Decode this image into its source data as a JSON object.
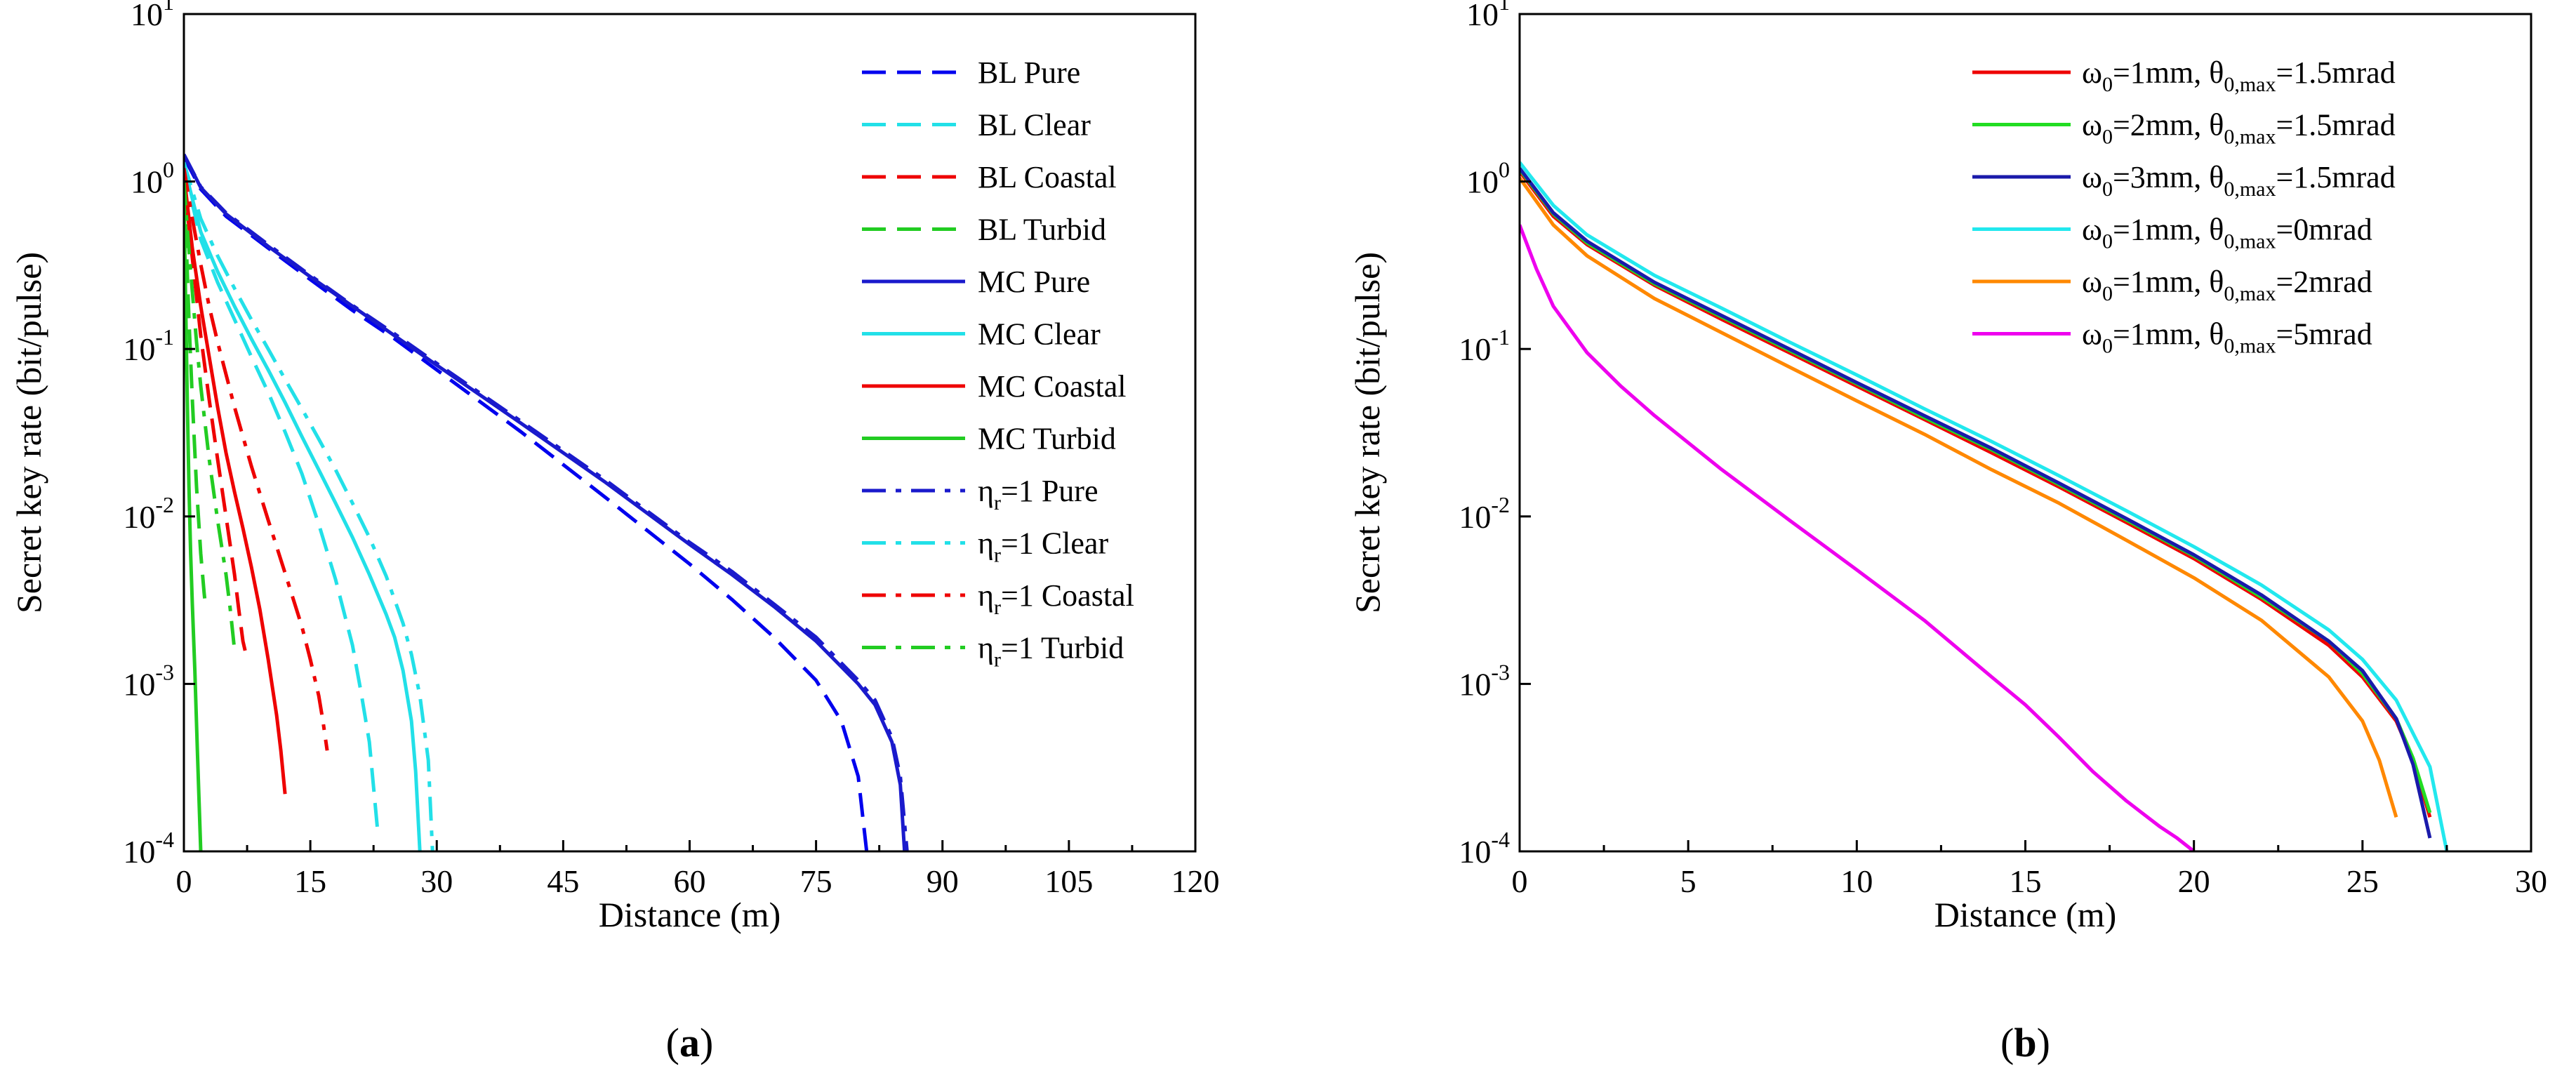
{
  "chart_data": [
    {
      "type": "line",
      "panel_label": "a",
      "xlabel": "Distance (m)",
      "ylabel": "Secret key rate (bit/pulse)",
      "xlim": [
        0,
        120
      ],
      "ylim": [
        0.0001,
        10
      ],
      "yscale": "log",
      "x_ticks": [
        "0",
        "15",
        "30",
        "45",
        "60",
        "75",
        "90",
        "105",
        "120"
      ],
      "y_ticks": [
        {
          "base": "10",
          "exp": "-4"
        },
        {
          "base": "10",
          "exp": "-3"
        },
        {
          "base": "10",
          "exp": "-2"
        },
        {
          "base": "10",
          "exp": "-1"
        },
        {
          "base": "10",
          "exp": "0"
        },
        {
          "base": "10",
          "exp": "1"
        }
      ],
      "legend_position": "top-right",
      "series": [
        {
          "name": "BL Pure",
          "color": "#0000ee",
          "dash": "dash",
          "x": [
            0,
            2,
            5,
            10,
            15,
            20,
            25,
            30,
            40,
            50,
            60,
            65,
            70,
            75,
            78,
            80,
            81
          ],
          "y": [
            1.4,
            0.9,
            0.62,
            0.4,
            0.26,
            0.17,
            0.115,
            0.075,
            0.032,
            0.013,
            0.0052,
            0.0032,
            0.0019,
            0.00105,
            0.0006,
            0.00028,
            0.0001
          ]
        },
        {
          "name": "BL Clear",
          "color": "#22e0e8",
          "dash": "dash",
          "x": [
            0,
            2,
            4,
            6,
            8,
            10,
            12,
            14,
            16,
            18,
            20,
            21,
            22,
            23
          ],
          "y": [
            1.2,
            0.45,
            0.25,
            0.15,
            0.09,
            0.055,
            0.032,
            0.018,
            0.009,
            0.0042,
            0.0017,
            0.0009,
            0.00045,
            0.00013
          ]
        },
        {
          "name": "BL Coastal",
          "color": "#ee0000",
          "dash": "dash",
          "x": [
            0,
            0.5,
            1,
            2,
            3,
            4,
            5,
            6,
            6.5,
            7,
            7.5
          ],
          "y": [
            1.1,
            0.6,
            0.35,
            0.12,
            0.05,
            0.022,
            0.01,
            0.0045,
            0.0028,
            0.0018,
            0.0014
          ]
        },
        {
          "name": "BL Turbid",
          "color": "#22cc22",
          "dash": "dash",
          "x": [
            0,
            0.3,
            0.6,
            1,
            1.5,
            2,
            2.4,
            2.6
          ],
          "y": [
            0.9,
            0.4,
            0.15,
            0.05,
            0.015,
            0.006,
            0.0035,
            0.0028
          ]
        },
        {
          "name": "MC Pure",
          "color": "#1a1acc",
          "dash": "solid",
          "x": [
            0,
            2,
            5,
            10,
            15,
            20,
            25,
            30,
            40,
            50,
            60,
            65,
            70,
            75,
            80,
            82,
            84,
            85,
            85.5
          ],
          "y": [
            1.45,
            0.92,
            0.64,
            0.41,
            0.27,
            0.18,
            0.12,
            0.08,
            0.036,
            0.016,
            0.0068,
            0.0045,
            0.0029,
            0.0018,
            0.001,
            0.00075,
            0.00045,
            0.00025,
            0.0001
          ]
        },
        {
          "name": "MC Clear",
          "color": "#22e0e8",
          "dash": "solid",
          "x": [
            0,
            2,
            4,
            6,
            8,
            10,
            12,
            14,
            16,
            18,
            20,
            22,
            24,
            25,
            26,
            27,
            27.5,
            28
          ],
          "y": [
            1.25,
            0.5,
            0.29,
            0.18,
            0.115,
            0.075,
            0.048,
            0.03,
            0.019,
            0.012,
            0.0075,
            0.0045,
            0.0026,
            0.0019,
            0.0012,
            0.0006,
            0.0003,
            0.0001
          ]
        },
        {
          "name": "MC Coastal",
          "color": "#ee0000",
          "dash": "solid",
          "x": [
            0,
            1,
            2,
            3,
            4,
            5,
            6,
            7,
            8,
            9,
            10,
            11,
            11.5,
            12
          ],
          "y": [
            1.1,
            0.4,
            0.18,
            0.09,
            0.045,
            0.024,
            0.014,
            0.0085,
            0.005,
            0.0028,
            0.0014,
            0.00065,
            0.0004,
            0.00022
          ]
        },
        {
          "name": "MC Turbid",
          "color": "#22cc22",
          "dash": "solid",
          "x": [
            0,
            0.2,
            0.4,
            0.6,
            0.8,
            1,
            1.3,
            1.6,
            2
          ],
          "y": [
            0.9,
            0.2,
            0.05,
            0.015,
            0.006,
            0.003,
            0.0012,
            0.0004,
            0.0001
          ]
        },
        {
          "name": "ηr=1 Pure",
          "name_parts": [
            "η",
            "r",
            "=1 Pure"
          ],
          "color": "#1a1acc",
          "dash": "dashdot",
          "x": [
            0,
            2,
            5,
            10,
            15,
            20,
            25,
            30,
            40,
            50,
            60,
            65,
            70,
            75,
            80,
            82,
            84,
            85,
            85.8
          ],
          "y": [
            1.45,
            0.93,
            0.65,
            0.42,
            0.275,
            0.182,
            0.123,
            0.082,
            0.037,
            0.0165,
            0.007,
            0.0047,
            0.003,
            0.0019,
            0.00105,
            0.0008,
            0.00048,
            0.00028,
            0.0001
          ]
        },
        {
          "name": "ηr=1 Clear",
          "name_parts": [
            "η",
            "r",
            "=1 Clear"
          ],
          "color": "#22e0e8",
          "dash": "dashdot",
          "x": [
            0,
            2,
            4,
            6,
            8,
            10,
            12,
            14,
            16,
            18,
            20,
            22,
            24,
            26,
            27,
            28,
            29,
            29.5
          ],
          "y": [
            1.3,
            0.6,
            0.36,
            0.23,
            0.15,
            0.1,
            0.066,
            0.044,
            0.029,
            0.019,
            0.012,
            0.0075,
            0.0044,
            0.0023,
            0.0015,
            0.00085,
            0.00035,
            0.0001
          ]
        },
        {
          "name": "ηr=1 Coastal",
          "name_parts": [
            "η",
            "r",
            "=1 Coastal"
          ],
          "color": "#ee0000",
          "dash": "dashdot",
          "x": [
            0,
            1,
            2,
            3,
            4,
            6,
            8,
            10,
            12,
            14,
            15,
            16,
            16.5,
            17
          ],
          "y": [
            1.2,
            0.6,
            0.32,
            0.18,
            0.11,
            0.045,
            0.02,
            0.0095,
            0.0046,
            0.0022,
            0.0014,
            0.00085,
            0.0006,
            0.0004
          ]
        },
        {
          "name": "ηr=1 Turbid",
          "name_parts": [
            "η",
            "r",
            "=1 Turbid"
          ],
          "color": "#22cc22",
          "dash": "dashdot",
          "x": [
            0,
            0.5,
            1,
            1.5,
            2,
            3,
            4,
            5,
            5.5,
            6
          ],
          "y": [
            1.0,
            0.45,
            0.22,
            0.11,
            0.06,
            0.022,
            0.0095,
            0.0045,
            0.0028,
            0.0016
          ]
        }
      ]
    },
    {
      "type": "line",
      "panel_label": "b",
      "xlabel": "Distance (m)",
      "ylabel": "Secret key rate (bit/pulse)",
      "xlim": [
        0,
        30
      ],
      "ylim": [
        0.0001,
        10
      ],
      "yscale": "log",
      "x_ticks": [
        "0",
        "5",
        "10",
        "15",
        "20",
        "25",
        "30"
      ],
      "y_ticks": [
        {
          "base": "10",
          "exp": "-4"
        },
        {
          "base": "10",
          "exp": "-3"
        },
        {
          "base": "10",
          "exp": "-2"
        },
        {
          "base": "10",
          "exp": "-1"
        },
        {
          "base": "10",
          "exp": "0"
        },
        {
          "base": "10",
          "exp": "1"
        }
      ],
      "legend_position": "top-right",
      "series": [
        {
          "name": "ω0=1mm, θ0,max=1.5mrad",
          "name_parts": [
            "ω",
            "0",
            "=1mm, θ",
            "0,max",
            "=1.5mrad"
          ],
          "color": "#ee0000",
          "dash": "solid",
          "x": [
            0,
            1,
            2,
            4,
            6,
            8,
            10,
            12,
            14,
            16,
            18,
            20,
            22,
            24,
            25,
            26,
            26.5,
            27
          ],
          "y": [
            1.15,
            0.62,
            0.42,
            0.24,
            0.15,
            0.095,
            0.06,
            0.038,
            0.024,
            0.015,
            0.0092,
            0.0056,
            0.0032,
            0.0017,
            0.0011,
            0.0006,
            0.00035,
            0.00016
          ]
        },
        {
          "name": "ω0=2mm, θ0,max=1.5mrad",
          "name_parts": [
            "ω",
            "0",
            "=2mm, θ",
            "0,max",
            "=1.5mrad"
          ],
          "color": "#22dd22",
          "dash": "solid",
          "x": [
            0,
            1,
            2,
            4,
            6,
            8,
            10,
            12,
            14,
            16,
            18,
            20,
            22,
            24,
            25,
            26,
            26.5,
            27
          ],
          "y": [
            1.18,
            0.64,
            0.43,
            0.245,
            0.155,
            0.098,
            0.062,
            0.039,
            0.025,
            0.0155,
            0.0095,
            0.0058,
            0.0033,
            0.0018,
            0.00115,
            0.00062,
            0.00036,
            0.00017
          ]
        },
        {
          "name": "ω0=3mm, θ0,max=1.5mrad",
          "name_parts": [
            "ω",
            "0",
            "=3mm, θ",
            "0,max",
            "=1.5mrad"
          ],
          "color": "#1a1aaa",
          "dash": "solid",
          "x": [
            0,
            1,
            2,
            4,
            6,
            8,
            10,
            12,
            14,
            16,
            18,
            20,
            22,
            24,
            25,
            26,
            26.5,
            27
          ],
          "y": [
            1.2,
            0.65,
            0.44,
            0.25,
            0.158,
            0.1,
            0.063,
            0.04,
            0.0255,
            0.0158,
            0.0097,
            0.0059,
            0.0034,
            0.0018,
            0.0012,
            0.00062,
            0.00033,
            0.00012
          ]
        },
        {
          "name": "ω0=1mm, θ0,max=0mrad",
          "name_parts": [
            "ω",
            "0",
            "=1mm, θ",
            "0,max",
            "=0mrad"
          ],
          "color": "#22e8ee",
          "dash": "solid",
          "x": [
            0,
            1,
            2,
            4,
            6,
            8,
            10,
            12,
            14,
            16,
            18,
            20,
            22,
            24,
            25,
            26,
            27,
            27.5
          ],
          "y": [
            1.3,
            0.72,
            0.48,
            0.275,
            0.175,
            0.11,
            0.07,
            0.044,
            0.028,
            0.0175,
            0.0108,
            0.0066,
            0.0039,
            0.0021,
            0.0014,
            0.0008,
            0.00032,
            0.0001
          ]
        },
        {
          "name": "ω0=1mm, θ0,max=2mrad",
          "name_parts": [
            "ω",
            "0",
            "=1mm, θ",
            "0,max",
            "=2mrad"
          ],
          "color": "#ff8800",
          "dash": "solid",
          "x": [
            0,
            1,
            2,
            4,
            6,
            8,
            10,
            12,
            14,
            16,
            18,
            20,
            22,
            24,
            25,
            25.5,
            26
          ],
          "y": [
            1.05,
            0.55,
            0.36,
            0.2,
            0.125,
            0.078,
            0.049,
            0.031,
            0.019,
            0.012,
            0.0072,
            0.0043,
            0.0024,
            0.0011,
            0.0006,
            0.00035,
            0.00016
          ]
        },
        {
          "name": "ω0=1mm, θ0,max=5mrad",
          "name_parts": [
            "ω",
            "0",
            "=1mm, θ",
            "0,max",
            "=5mrad"
          ],
          "color": "#ee00ee",
          "dash": "solid",
          "x": [
            0,
            0.5,
            1,
            2,
            3,
            4,
            6,
            8,
            10,
            12,
            14,
            15,
            16,
            17,
            18,
            19,
            19.5,
            20
          ],
          "y": [
            0.55,
            0.3,
            0.18,
            0.095,
            0.06,
            0.04,
            0.019,
            0.0095,
            0.0048,
            0.0024,
            0.0011,
            0.00075,
            0.00048,
            0.0003,
            0.0002,
            0.00014,
            0.00012,
            0.0001
          ]
        }
      ]
    }
  ]
}
